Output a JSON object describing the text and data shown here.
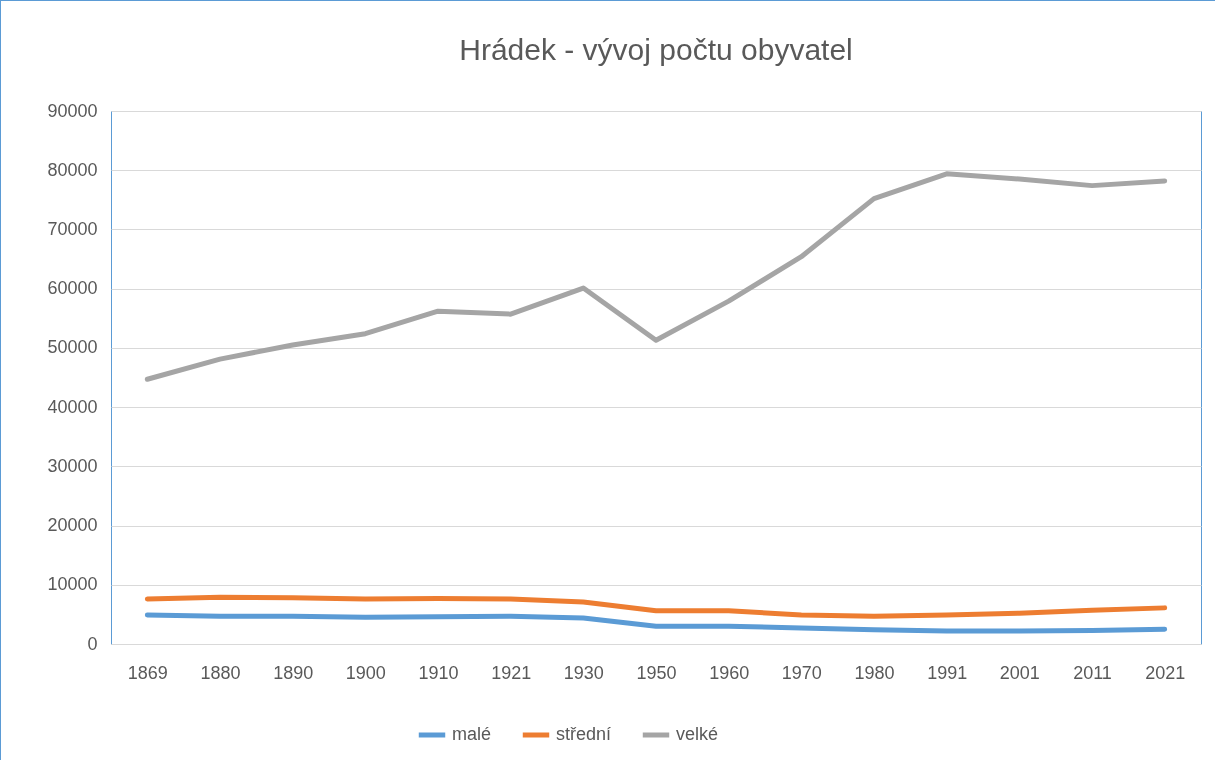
{
  "chart_data": {
    "type": "line",
    "title": "Hrádek - vývoj počtu obyvatel",
    "categories": [
      "1869",
      "1880",
      "1890",
      "1900",
      "1910",
      "1921",
      "1930",
      "1950",
      "1960",
      "1970",
      "1980",
      "1991",
      "2001",
      "2011",
      "2021"
    ],
    "series": [
      {
        "name": "malé",
        "color": "#5b9bd5",
        "values": [
          4900,
          4700,
          4700,
          4500,
          4600,
          4700,
          4400,
          3000,
          3000,
          2700,
          2400,
          2200,
          2200,
          2300,
          2500
        ]
      },
      {
        "name": "střední",
        "color": "#ed7d31",
        "values": [
          7600,
          7900,
          7800,
          7600,
          7700,
          7600,
          7100,
          5600,
          5600,
          4900,
          4700,
          4900,
          5200,
          5700,
          6100
        ]
      },
      {
        "name": "velké",
        "color": "#a5a5a5",
        "values": [
          44700,
          48100,
          50500,
          52400,
          56200,
          55700,
          60100,
          51300,
          57900,
          65400,
          75200,
          79400,
          78500,
          77400,
          78200
        ]
      }
    ],
    "ylim": [
      0,
      90000
    ],
    "yticks": [
      0,
      10000,
      20000,
      30000,
      40000,
      50000,
      60000,
      70000,
      80000,
      90000
    ],
    "grid": "y",
    "legend": "bottom",
    "marker": "none",
    "line_style": "solid"
  }
}
